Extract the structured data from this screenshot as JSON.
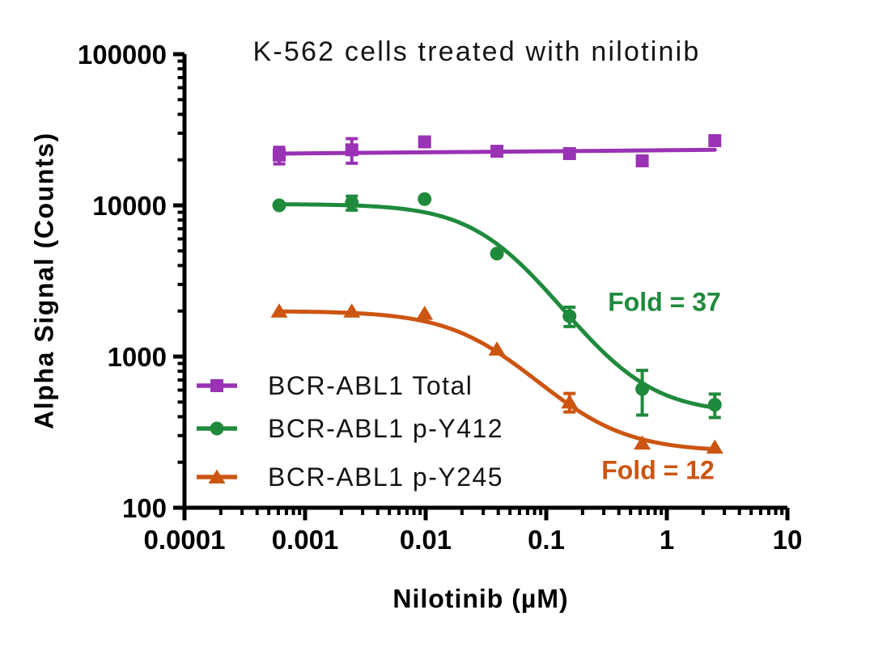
{
  "chart_data": {
    "type": "scatter",
    "title": "K-562 cells treated with nilotinib",
    "xlabel": "Nilotinib (µM)",
    "ylabel": "Alpha Signal (Counts)",
    "xscale": "log",
    "yscale": "log",
    "xlim": [
      0.0001,
      10
    ],
    "ylim": [
      100,
      100000
    ],
    "xticks": {
      "values": [
        0.0001,
        0.001,
        0.01,
        0.1,
        1,
        10
      ],
      "labels": [
        "0.0001",
        "0.001",
        "0.01",
        "0.1",
        "1",
        "10"
      ]
    },
    "yticks": {
      "values": [
        100,
        1000,
        10000,
        100000
      ],
      "labels": [
        "100",
        "1000",
        "10000",
        "100000"
      ]
    },
    "grid": false,
    "legend_position": "inside lower-left",
    "series": [
      {
        "name": "BCR-ABL1 Total",
        "color": "#9932B4",
        "marker": "square",
        "x": [
          0.00061,
          0.00244,
          0.0098,
          0.039,
          0.156,
          0.625,
          2.5
        ],
        "y": [
          21500,
          23300,
          26300,
          22800,
          22000,
          19700,
          26800
        ],
        "yerr": [
          2700,
          4300,
          0,
          0,
          0,
          0,
          0
        ],
        "fit": {
          "type": "line",
          "y_start": 22000,
          "y_end": 23300
        }
      },
      {
        "name": "BCR-ABL1 p-Y412",
        "color": "#1F8A3C",
        "marker": "circle",
        "x": [
          0.00061,
          0.00244,
          0.0098,
          0.039,
          0.156,
          0.625,
          2.5
        ],
        "y": [
          10000,
          10400,
          11000,
          4800,
          1850,
          610,
          480
        ],
        "yerr": [
          0,
          1100,
          0,
          0,
          270,
          200,
          85
        ],
        "fit": {
          "type": "4pl",
          "top": 10200,
          "bottom": 420,
          "ec50": 0.042,
          "hill": 1.35
        }
      },
      {
        "name": "BCR-ABL1 p-Y245",
        "color": "#CC5511",
        "marker": "triangle",
        "x": [
          0.00061,
          0.00244,
          0.0098,
          0.039,
          0.156,
          0.625,
          2.5
        ],
        "y": [
          2000,
          2000,
          1930,
          1120,
          500,
          268,
          252
        ],
        "yerr": [
          0,
          0,
          0,
          0,
          70,
          0,
          0
        ],
        "fit": {
          "type": "4pl",
          "top": 2000,
          "bottom": 235,
          "ec50": 0.036,
          "hill": 1.25
        }
      }
    ],
    "annotations": [
      {
        "text": "Fold = 37",
        "color": "#1F8A3C"
      },
      {
        "text": "Fold = 12",
        "color": "#CC5511"
      }
    ]
  }
}
